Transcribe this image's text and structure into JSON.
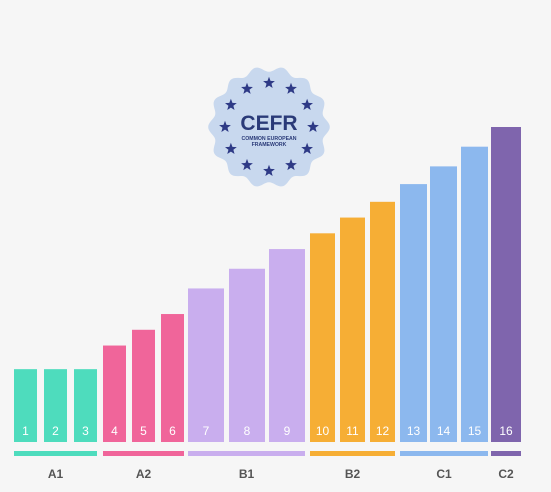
{
  "logo": {
    "title": "CEFR",
    "line1": "COMMON EUROPEAN",
    "line2": "FRAMEWORK",
    "star_color": "#2e3a86",
    "badge_color": "#c8d8ee"
  },
  "chart_data": {
    "type": "bar",
    "title": "",
    "xlabel": "",
    "ylabel": "",
    "ylim": [
      0,
      16
    ],
    "categories": [
      "1",
      "2",
      "3",
      "4",
      "5",
      "6",
      "7",
      "8",
      "9",
      "10",
      "11",
      "12",
      "13",
      "14",
      "15",
      "16"
    ],
    "values": [
      3.7,
      3.7,
      3.7,
      4.9,
      5.7,
      6.5,
      7.8,
      8.8,
      9.8,
      10.6,
      11.4,
      12.2,
      13.1,
      14.0,
      15.0,
      16.0
    ],
    "levels": [
      {
        "name": "A1",
        "steps": [
          "1",
          "2",
          "3"
        ],
        "color": "#4edcbd"
      },
      {
        "name": "A2",
        "steps": [
          "4",
          "5",
          "6"
        ],
        "color": "#f0659a"
      },
      {
        "name": "B1",
        "steps": [
          "7",
          "8",
          "9"
        ],
        "color": "#c9aeee"
      },
      {
        "name": "B2",
        "steps": [
          "10",
          "11",
          "12"
        ],
        "color": "#f6ae35"
      },
      {
        "name": "C1",
        "steps": [
          "13",
          "14",
          "15"
        ],
        "color": "#8cb8ee"
      },
      {
        "name": "C2",
        "steps": [
          "16"
        ],
        "color": "#7f65ad"
      }
    ]
  }
}
